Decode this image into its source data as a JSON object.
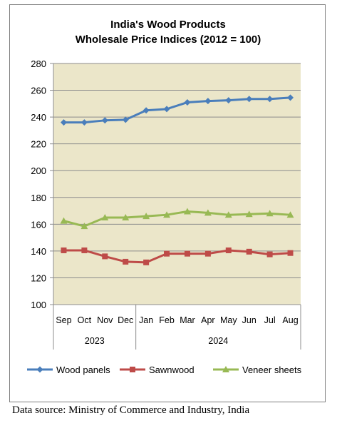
{
  "chart_data": {
    "type": "line",
    "title_lines": [
      "India's Wood Products",
      "Wholesale Price Indices (2012 = 100)"
    ],
    "categories": [
      "Sep",
      "Oct",
      "Nov",
      "Dec",
      "Jan",
      "Feb",
      "Mar",
      "Apr",
      "May",
      "Jun",
      "Jul",
      "Aug"
    ],
    "year_groups": [
      {
        "label": "2023",
        "start": 0,
        "end": 3
      },
      {
        "label": "2024",
        "start": 4,
        "end": 11
      }
    ],
    "ylim": [
      100,
      280
    ],
    "yticks": [
      100,
      120,
      140,
      160,
      180,
      200,
      220,
      240,
      260,
      280
    ],
    "grid": true,
    "legend_position": "bottom",
    "plot_background": "#ebe6c9",
    "series": [
      {
        "name": "Wood panels",
        "color": "#4a7ebb",
        "marker": "diamond",
        "values": [
          236,
          236,
          237.5,
          238,
          245,
          246,
          251,
          252,
          252.5,
          253.5,
          253.5,
          254.5
        ]
      },
      {
        "name": "Sawnwood",
        "color": "#be4b48",
        "marker": "square",
        "values": [
          140.5,
          140.5,
          136,
          132,
          131.5,
          138,
          138,
          138,
          140.5,
          139.5,
          137.5,
          138.5
        ]
      },
      {
        "name": "Veneer sheets",
        "color": "#98b954",
        "marker": "triangle",
        "values": [
          162.5,
          158.5,
          165,
          165,
          166,
          167,
          169.5,
          168.5,
          167,
          167.5,
          168,
          167
        ]
      }
    ]
  },
  "source_note": "Data source: Ministry of Commerce and Industry, India"
}
